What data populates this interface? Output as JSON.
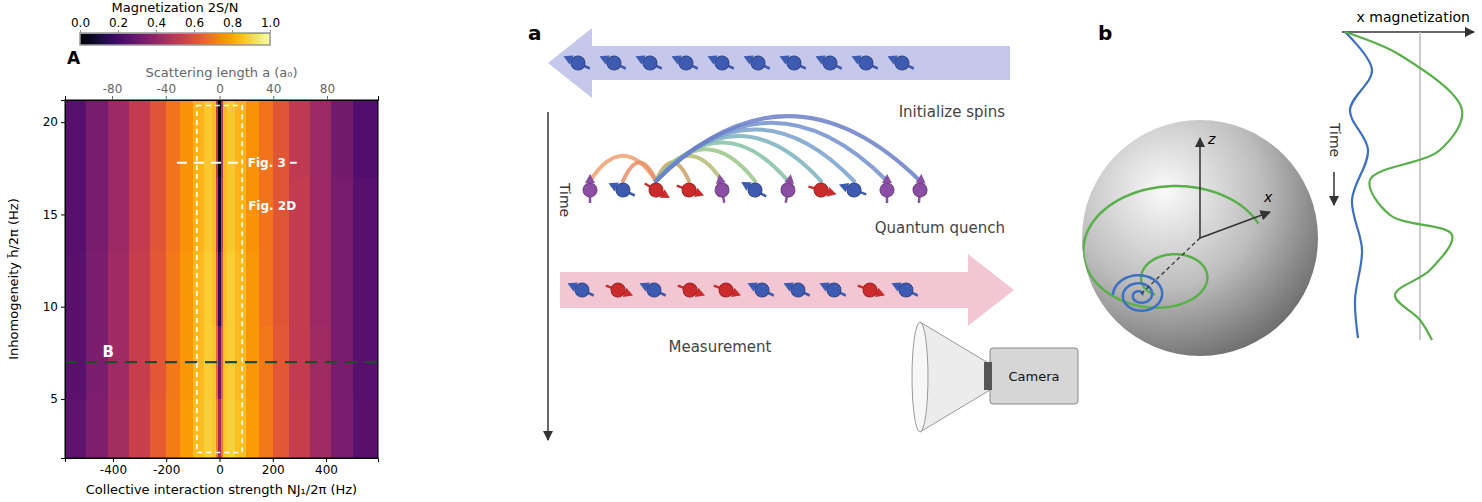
{
  "chart_data": {
    "type": "heatmap",
    "panel_label": "A",
    "x_label": "Collective interaction strength NJ₁/2π (Hz)",
    "y_label": "Inhomogeneity h̃/2π (Hz)",
    "x2_label": "Scattering length a (a₀)",
    "xlim": [
      -580,
      595
    ],
    "xticks": [
      -400,
      -200,
      0,
      200,
      400
    ],
    "x2lim": [
      -115,
      118
    ],
    "x2ticks": [
      -80,
      -40,
      0,
      40,
      80
    ],
    "ylim": [
      1.8,
      21.2
    ],
    "yticks": [
      5,
      10,
      15,
      20
    ],
    "x_bins": [
      -580,
      -500,
      -420,
      -340,
      -260,
      -200,
      -150,
      -100,
      -60,
      -30,
      -15,
      -6,
      6,
      15,
      30,
      60,
      100,
      150,
      200,
      260,
      340,
      420,
      500,
      595
    ],
    "y_bins": [
      1.8,
      5,
      9,
      13,
      17,
      21.2
    ],
    "cells": [
      [
        0.27,
        0.35,
        0.44,
        0.54,
        0.63,
        0.71,
        0.78,
        0.85,
        0.89,
        0.87,
        0.72,
        0.44,
        0.71,
        0.87,
        0.89,
        0.85,
        0.78,
        0.7,
        0.62,
        0.53,
        0.43,
        0.34,
        0.26
      ],
      [
        0.26,
        0.34,
        0.43,
        0.53,
        0.62,
        0.7,
        0.77,
        0.84,
        0.88,
        0.86,
        0.66,
        0.29,
        0.65,
        0.86,
        0.88,
        0.84,
        0.77,
        0.7,
        0.62,
        0.52,
        0.43,
        0.33,
        0.25
      ],
      [
        0.26,
        0.34,
        0.43,
        0.53,
        0.62,
        0.7,
        0.77,
        0.84,
        0.88,
        0.85,
        0.6,
        0.16,
        0.6,
        0.85,
        0.88,
        0.84,
        0.77,
        0.69,
        0.61,
        0.52,
        0.42,
        0.33,
        0.25
      ],
      [
        0.25,
        0.33,
        0.42,
        0.52,
        0.61,
        0.69,
        0.76,
        0.83,
        0.87,
        0.84,
        0.55,
        0.08,
        0.55,
        0.84,
        0.87,
        0.83,
        0.76,
        0.69,
        0.61,
        0.52,
        0.42,
        0.33,
        0.25
      ],
      [
        0.25,
        0.33,
        0.42,
        0.52,
        0.61,
        0.69,
        0.76,
        0.83,
        0.87,
        0.84,
        0.5,
        0.03,
        0.5,
        0.84,
        0.87,
        0.83,
        0.76,
        0.69,
        0.61,
        0.51,
        0.42,
        0.32,
        0.24
      ]
    ],
    "colorbar": {
      "title": "Magnetization 2S/N",
      "range": [
        0,
        1
      ],
      "ticks": [
        {
          "value": 0,
          "label": "0.0"
        },
        {
          "value": 0.2,
          "label": "0.2"
        },
        {
          "value": 0.4,
          "label": "0.4"
        },
        {
          "value": 0.6,
          "label": "0.6"
        },
        {
          "value": 0.8,
          "label": "0.8"
        },
        {
          "value": 1,
          "label": "1.0"
        }
      ]
    },
    "annotations": [
      {
        "text": "B",
        "y": 7,
        "color": "#1e4d2b"
      },
      {
        "text": "Fig. 3",
        "y": 17.8,
        "x": [
          -160,
          290
        ],
        "color": "#ffffff"
      },
      {
        "text": "Fig. 2D",
        "x": [
          -85,
          85
        ],
        "y": [
          2.1,
          20.9
        ],
        "color": "#ffffff"
      }
    ]
  },
  "diagram": {
    "a": {
      "label": "a",
      "time": "Time",
      "initialize": "Initialize spins",
      "quench": "Quantum quench",
      "measurement": "Measurement",
      "camera": "Camera"
    },
    "b": {
      "label": "b",
      "z_axis": "z",
      "x_axis": "x",
      "plot_title": "x magnetization",
      "time": "Time"
    }
  }
}
